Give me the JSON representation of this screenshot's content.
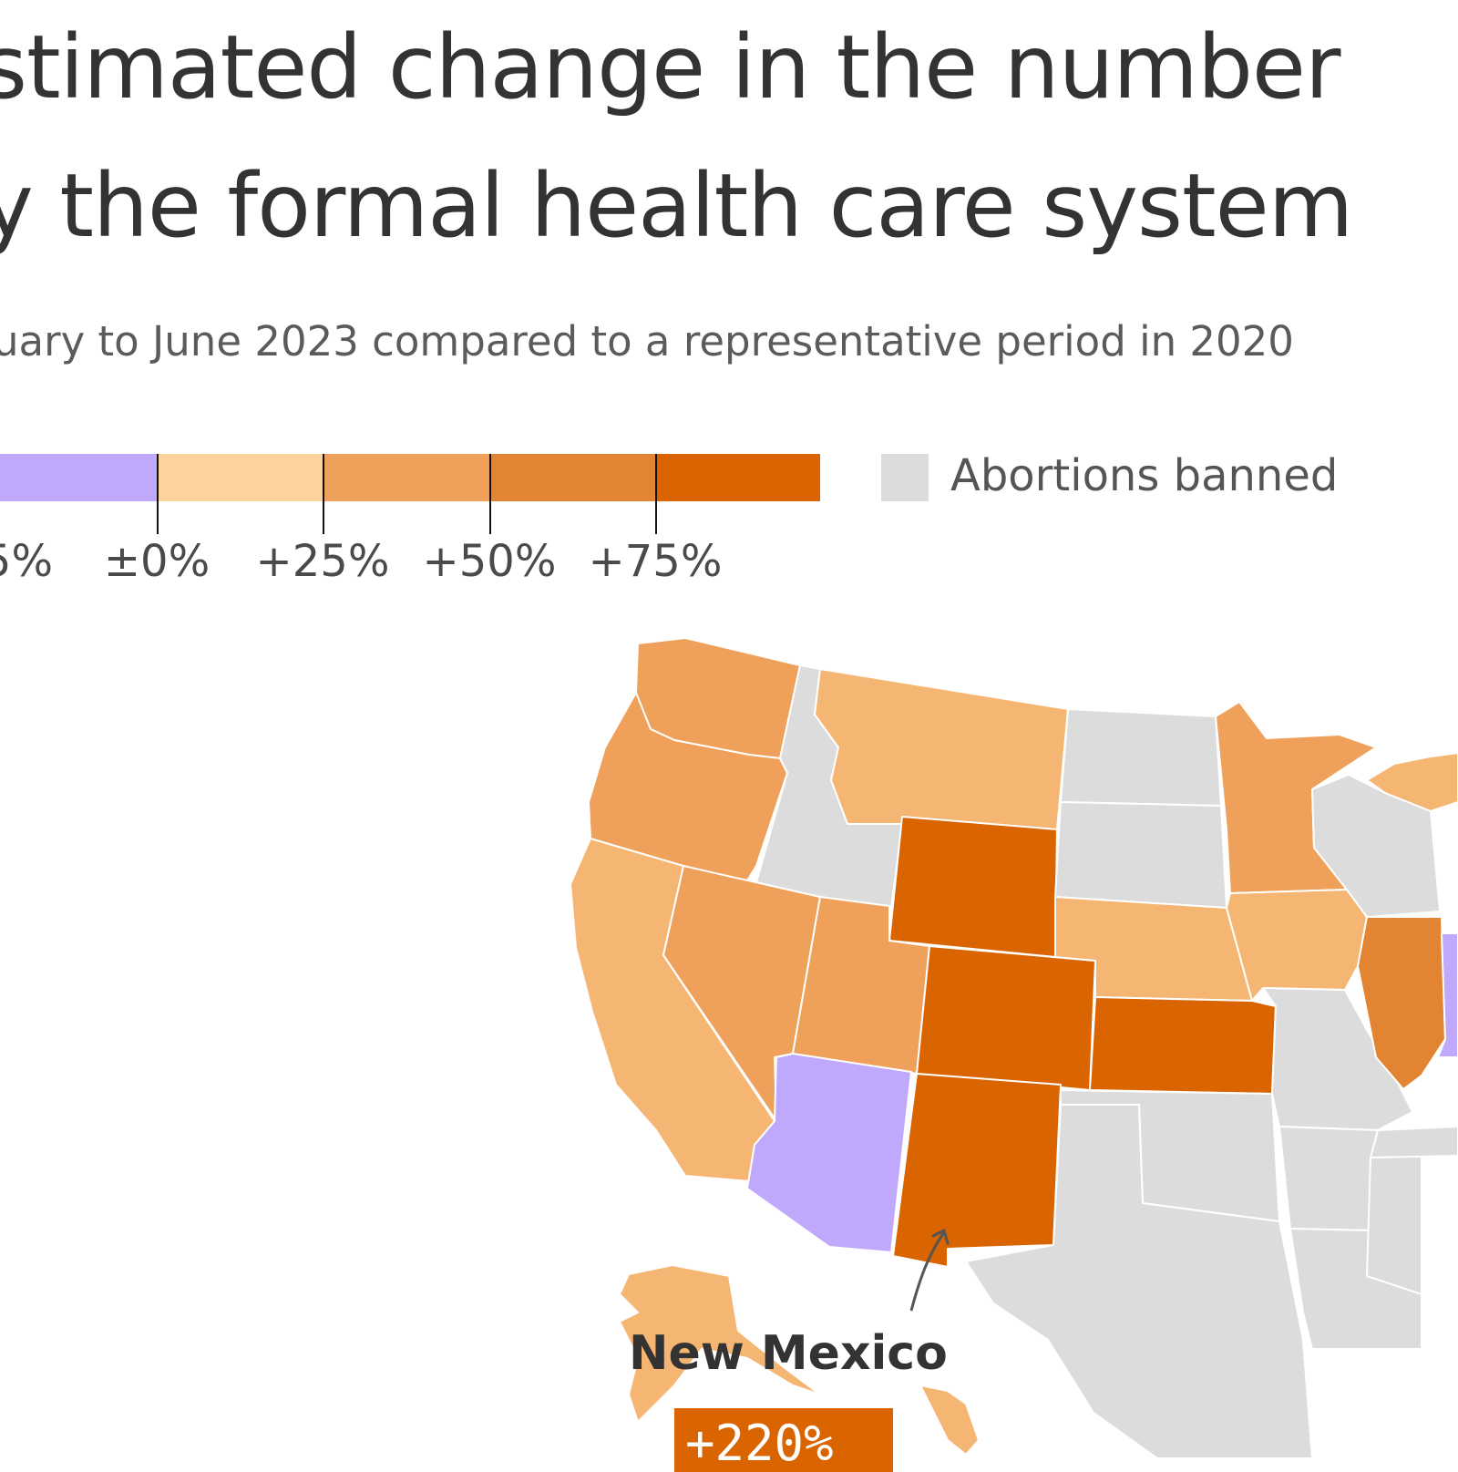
{
  "title": {
    "line1": "stimated change in the number",
    "line2": "y the formal health care system"
  },
  "subtitle": "uary to June 2023 compared to a representative period in 2020",
  "legend": {
    "ticks": [
      "5%",
      "±0%",
      "+25%",
      "+50%",
      "+75%"
    ],
    "colors": [
      "#c0a8fc",
      "#fcd29e",
      "#efa05a",
      "#e38432",
      "#d96400"
    ],
    "banned_label": "Abortions banned",
    "banned_color": "#dcdcdc"
  },
  "map": {
    "states": [
      {
        "name": "Washington",
        "color": "#efa05a"
      },
      {
        "name": "Oregon",
        "color": "#efa05a"
      },
      {
        "name": "California",
        "color": "#f6b673"
      },
      {
        "name": "Nevada",
        "color": "#efa05a"
      },
      {
        "name": "Idaho",
        "color": "#dcdcdc"
      },
      {
        "name": "Montana",
        "color": "#f6b673"
      },
      {
        "name": "Wyoming",
        "color": "#d96400"
      },
      {
        "name": "Utah",
        "color": "#efa05a"
      },
      {
        "name": "Colorado",
        "color": "#d96400"
      },
      {
        "name": "Arizona",
        "color": "#c0a8fc"
      },
      {
        "name": "New Mexico",
        "color": "#d96400"
      },
      {
        "name": "North Dakota",
        "color": "#dcdcdc"
      },
      {
        "name": "South Dakota",
        "color": "#dcdcdc"
      },
      {
        "name": "Nebraska",
        "color": "#f6b673"
      },
      {
        "name": "Kansas",
        "color": "#d96400"
      },
      {
        "name": "Oklahoma",
        "color": "#dcdcdc"
      },
      {
        "name": "Texas",
        "color": "#dcdcdc"
      },
      {
        "name": "Minnesota",
        "color": "#efa05a"
      },
      {
        "name": "Iowa",
        "color": "#f6b673"
      },
      {
        "name": "Missouri",
        "color": "#dcdcdc"
      },
      {
        "name": "Arkansas",
        "color": "#dcdcdc"
      },
      {
        "name": "Louisiana",
        "color": "#dcdcdc"
      },
      {
        "name": "Wisconsin",
        "color": "#dcdcdc"
      },
      {
        "name": "Illinois",
        "color": "#e38432"
      },
      {
        "name": "Michigan",
        "color": "#f6b673"
      },
      {
        "name": "Indiana",
        "color": "#c0a8fc"
      },
      {
        "name": "Mississippi",
        "color": "#dcdcdc"
      },
      {
        "name": "Tennessee",
        "color": "#dcdcdc"
      },
      {
        "name": "Alaska",
        "color": "#f6b673"
      },
      {
        "name": "Hawaii",
        "color": "#f6b673"
      }
    ]
  },
  "callout": {
    "state": "New Mexico",
    "value": "+220%"
  }
}
